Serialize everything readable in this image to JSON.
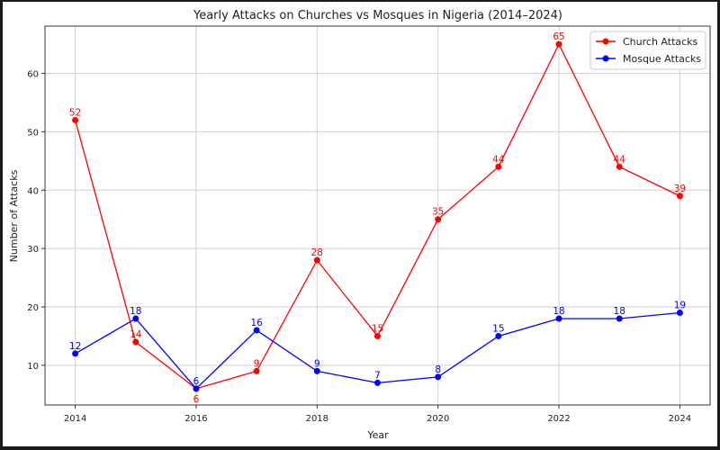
{
  "chart_data": {
    "type": "line",
    "title": "Yearly Attacks on Churches vs Mosques in Nigeria (2014–2024)",
    "xlabel": "Year",
    "ylabel": "Number of Attacks",
    "x": [
      2014,
      2015,
      2016,
      2017,
      2018,
      2019,
      2020,
      2021,
      2022,
      2023,
      2024
    ],
    "xticks": [
      2014,
      2016,
      2018,
      2020,
      2022,
      2024
    ],
    "yticks": [
      10,
      20,
      30,
      40,
      50,
      60
    ],
    "xlim": [
      2013.5,
      2024.5
    ],
    "ylim": [
      3.2,
      68.1
    ],
    "grid": true,
    "legend_position": "top-right",
    "series": [
      {
        "name": "Church Attacks",
        "color": "#ff0000",
        "marker": "circle",
        "values": [
          52,
          14,
          6,
          9,
          28,
          15,
          35,
          44,
          65,
          44,
          39
        ]
      },
      {
        "name": "Mosque Attacks",
        "color": "#0000ff",
        "marker": "circle",
        "values": [
          12,
          18,
          6,
          16,
          9,
          7,
          8,
          15,
          18,
          18,
          19
        ]
      }
    ]
  }
}
